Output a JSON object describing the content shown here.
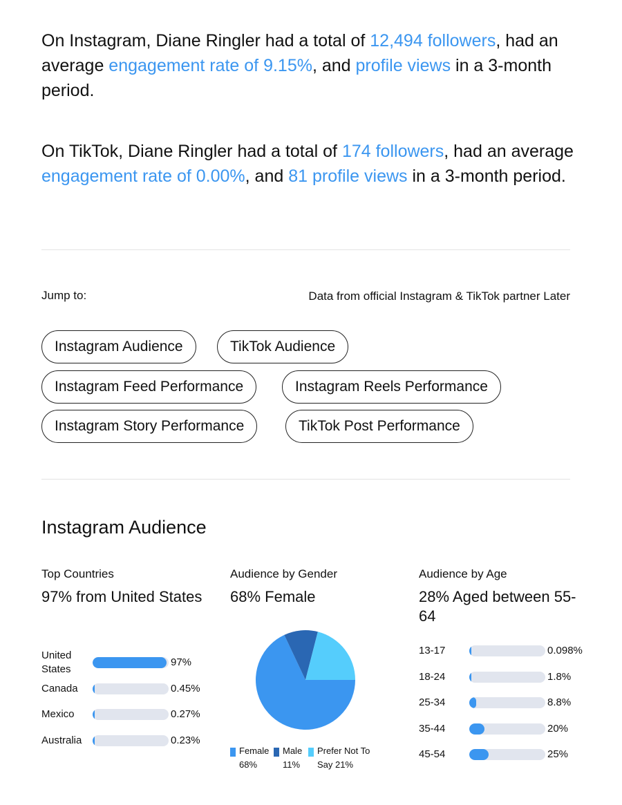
{
  "summary": {
    "instagram": {
      "t1": "On Instagram, Diane Ringler had a total of ",
      "followers": "12,494 followers",
      "t2": ", had an average ",
      "engagement": "engagement rate of 9.15%",
      "t3": ", and ",
      "views": "profile views",
      "t4": " in a 3-month period."
    },
    "tiktok": {
      "t1": "On TikTok, Diane Ringler had a total of ",
      "followers": "174 followers",
      "t2": ", had an average ",
      "engagement": "engagement rate of 0.00%",
      "t3": ", and ",
      "views": "81 profile views",
      "t4": " in a 3-month period."
    }
  },
  "jump": {
    "label": "Jump to:",
    "source_note": "Data from official Instagram & TikTok partner Later",
    "links": [
      "Instagram Audience",
      "TikTok Audience",
      "Instagram Feed Performance",
      "Instagram Reels Performance",
      "Instagram Story Performance",
      "TikTok Post Performance"
    ]
  },
  "audience": {
    "section_title": "Instagram Audience",
    "countries": {
      "title": "Top Countries",
      "headline": "97% from United States",
      "rows": [
        {
          "label": "United States",
          "value": 97,
          "display": "97%"
        },
        {
          "label": "Canada",
          "value": 0.45,
          "display": "0.45%"
        },
        {
          "label": "Mexico",
          "value": 0.27,
          "display": "0.27%"
        },
        {
          "label": "Australia",
          "value": 0.23,
          "display": "0.23%"
        }
      ]
    },
    "gender": {
      "title": "Audience by Gender",
      "headline": "68% Female",
      "legend": [
        {
          "label": "Female\n68%"
        },
        {
          "label": "Male\n11%"
        },
        {
          "label": "Prefer Not To\nSay 21%"
        }
      ]
    },
    "age": {
      "title": "Audience by Age",
      "headline": "28% Aged between 55-64",
      "rows": [
        {
          "label": "13-17",
          "value": 0.098,
          "display": "0.098%"
        },
        {
          "label": "18-24",
          "value": 1.8,
          "display": "1.8%"
        },
        {
          "label": "25-34",
          "value": 8.8,
          "display": "8.8%"
        },
        {
          "label": "35-44",
          "value": 20,
          "display": "20%"
        },
        {
          "label": "45-54",
          "value": 25,
          "display": "25%"
        }
      ]
    }
  },
  "chart_data": {
    "type": "pie",
    "categories": [
      "Female",
      "Male",
      "Prefer Not To Say"
    ],
    "values": [
      68,
      11,
      21
    ],
    "colors": [
      "#3b96f0",
      "#2a67b3",
      "#55cdfc"
    ],
    "title": "Audience by Gender"
  },
  "colors": {
    "accent": "#3b96f0",
    "bar_track": "#e1e5ee"
  }
}
